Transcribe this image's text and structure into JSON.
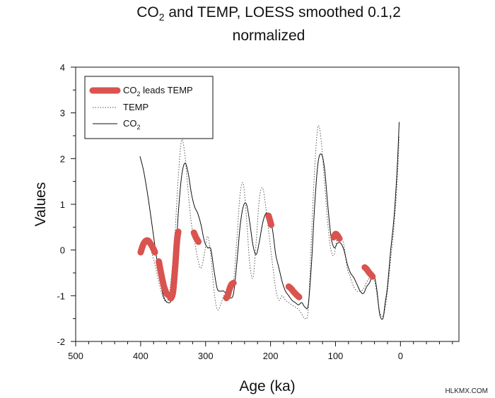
{
  "chart_data": {
    "type": "line",
    "title_line1_prefix": "CO",
    "title_line1_sub": "2",
    "title_line1_suffix": " and TEMP, LOESS smoothed 0.1,2",
    "title_line2": "normalized",
    "xlabel": "Age (ka)",
    "ylabel": "Values",
    "xlim": [
      500,
      -90
    ],
    "ylim": [
      -2,
      4
    ],
    "x_ticks": [
      500,
      400,
      300,
      200,
      100,
      0
    ],
    "y_ticks": [
      -2,
      -1,
      0,
      1,
      2,
      3,
      4
    ],
    "x_reversed": true,
    "grid": false,
    "legend_position": "top-left",
    "legend": {
      "leads": {
        "prefix": "CO",
        "sub": "2",
        "suffix": " leads TEMP"
      },
      "temp": {
        "text": "TEMP"
      },
      "co2": {
        "prefix": "CO",
        "sub": "2"
      }
    },
    "colors": {
      "leads": "#d9534f",
      "temp": "#555555",
      "co2": "#111111"
    },
    "series": [
      {
        "name": "CO2",
        "style": "solid",
        "x": [
          401,
          395,
          388,
          380,
          372,
          365,
          358,
          352,
          347,
          342,
          337,
          332,
          327,
          322,
          317,
          312,
          307,
          302,
          297,
          292,
          287,
          282,
          277,
          272,
          267,
          262,
          257,
          252,
          247,
          242,
          237,
          232,
          227,
          222,
          217,
          212,
          207,
          202,
          197,
          192,
          187,
          182,
          177,
          172,
          167,
          162,
          157,
          152,
          147,
          142,
          137,
          132,
          127,
          122,
          117,
          112,
          107,
          102,
          97,
          92,
          87,
          82,
          77,
          72,
          67,
          62,
          57,
          52,
          47,
          42,
          37,
          32,
          27,
          24,
          20,
          15,
          10,
          5,
          2
        ],
        "y": [
          2.05,
          1.7,
          1.1,
          0.3,
          -0.5,
          -1.0,
          -1.15,
          -1.05,
          -0.4,
          0.8,
          1.6,
          1.9,
          1.7,
          1.25,
          0.95,
          0.8,
          0.55,
          0.2,
          0.05,
          0.02,
          -0.45,
          -0.85,
          -0.9,
          -0.9,
          -1.0,
          -1.05,
          -0.95,
          -0.3,
          0.5,
          0.95,
          1.0,
          0.6,
          0.1,
          -0.1,
          0.2,
          0.6,
          0.8,
          0.75,
          0.45,
          -0.1,
          -0.4,
          -0.7,
          -0.9,
          -1.0,
          -1.1,
          -1.15,
          -1.2,
          -1.15,
          -1.25,
          -1.2,
          -0.3,
          1.0,
          1.9,
          2.1,
          1.8,
          1.0,
          0.3,
          0.05,
          0.15,
          0.15,
          0.0,
          -0.3,
          -0.5,
          -0.6,
          -0.75,
          -0.9,
          -0.95,
          -0.8,
          -0.7,
          -0.5,
          -0.8,
          -1.4,
          -1.5,
          -1.2,
          -0.8,
          0.0,
          0.7,
          1.8,
          2.8
        ]
      },
      {
        "name": "TEMP",
        "style": "dotted",
        "x": [
          401,
          395,
          388,
          380,
          372,
          365,
          358,
          352,
          347,
          342,
          337,
          332,
          327,
          322,
          317,
          312,
          307,
          302,
          297,
          292,
          287,
          282,
          277,
          272,
          267,
          262,
          257,
          252,
          247,
          242,
          237,
          232,
          227,
          222,
          217,
          212,
          207,
          202,
          197,
          192,
          187,
          182,
          177,
          172,
          167,
          162,
          157,
          152,
          147,
          142,
          137,
          132,
          127,
          122,
          117,
          112,
          107,
          102,
          97,
          92,
          87,
          82,
          77,
          72,
          67,
          62,
          57,
          52,
          47,
          42,
          37,
          32,
          27,
          24,
          20,
          15,
          10,
          5,
          2
        ],
        "y": [
          -0.05,
          0.1,
          0.1,
          -0.2,
          -0.7,
          -1.05,
          -1.1,
          -0.5,
          0.4,
          1.6,
          2.4,
          2.1,
          1.3,
          0.6,
          0.2,
          -0.2,
          -0.4,
          -0.1,
          0.3,
          -0.1,
          -0.9,
          -1.3,
          -1.2,
          -1.0,
          -0.95,
          -0.9,
          -0.7,
          0.2,
          1.2,
          1.45,
          0.7,
          -0.3,
          -0.6,
          0.2,
          1.15,
          1.35,
          0.9,
          0.3,
          -0.3,
          -0.85,
          -1.1,
          -1.0,
          -1.1,
          -1.15,
          -1.2,
          -1.25,
          -1.3,
          -1.4,
          -1.5,
          -1.3,
          0.3,
          1.8,
          2.7,
          2.4,
          1.5,
          0.6,
          0.0,
          -0.1,
          0.3,
          0.3,
          0.1,
          -0.4,
          -0.6,
          -0.8,
          -0.9,
          -0.9,
          -0.85,
          -0.7,
          -0.6,
          -0.55,
          -0.9,
          -1.35,
          -1.45,
          -1.3,
          -0.9,
          -0.2,
          0.5,
          1.5,
          2.5
        ]
      },
      {
        "name": "CO2 leads TEMP",
        "style": "thick",
        "segments": [
          {
            "x": [
              400,
              396,
              392,
              388,
              384,
              380,
              378
            ],
            "y": [
              -0.05,
              0.12,
              0.2,
              0.2,
              0.12,
              0.02,
              -0.05
            ]
          },
          {
            "x": [
              372,
              368,
              364,
              360,
              356,
              353,
              350,
              347,
              344,
              342
            ],
            "y": [
              -0.25,
              -0.55,
              -0.8,
              -0.95,
              -1.0,
              -1.05,
              -0.9,
              -0.4,
              0.2,
              0.4
            ]
          },
          {
            "x": [
              318,
              315,
              311
            ],
            "y": [
              0.38,
              0.28,
              0.18
            ]
          },
          {
            "x": [
              268,
              266,
              263,
              260,
              257
            ],
            "y": [
              -1.05,
              -1.0,
              -0.85,
              -0.75,
              -0.72
            ]
          },
          {
            "x": [
              203,
              201,
              199
            ],
            "y": [
              0.75,
              0.65,
              0.55
            ]
          },
          {
            "x": [
              172,
              168,
              164,
              160,
              156
            ],
            "y": [
              -0.8,
              -0.85,
              -0.92,
              -0.98,
              -1.03
            ]
          },
          {
            "x": [
              103,
              100,
              97,
              94
            ],
            "y": [
              0.28,
              0.35,
              0.32,
              0.25
            ]
          },
          {
            "x": [
              55,
              52,
              49,
              46,
              43
            ],
            "y": [
              -0.38,
              -0.42,
              -0.48,
              -0.53,
              -0.58
            ]
          }
        ]
      }
    ]
  },
  "watermark": "HLKMX.COM"
}
